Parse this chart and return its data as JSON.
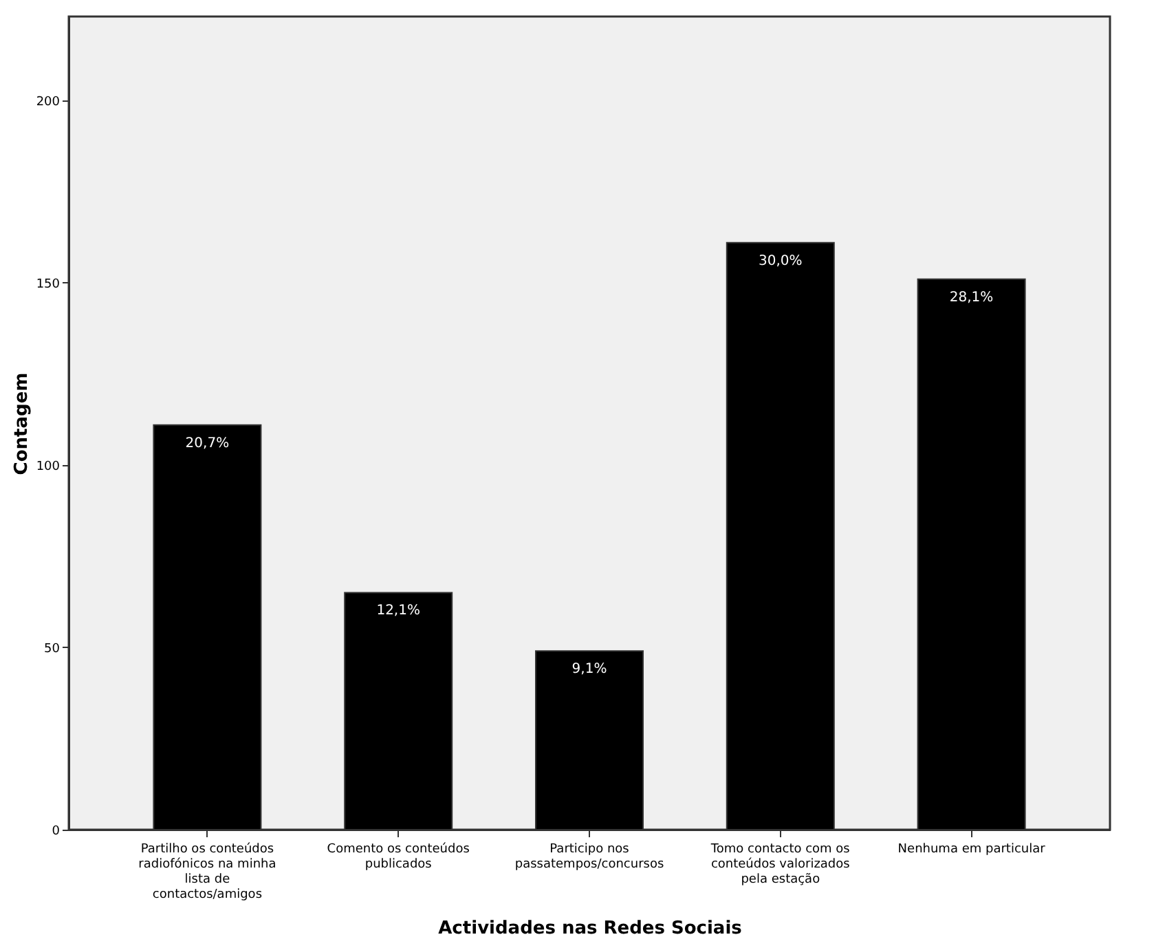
{
  "chart_data": {
    "type": "bar",
    "categories": [
      "Partilho os conteúdos radiofónicos na minha lista de contactos/amigos",
      "Comento os conteúdos publicados",
      "Participo nos passatempos/concursos",
      "Tomo contacto com os conteúdos valorizados pela estação",
      "Nenhuma em particular"
    ],
    "values": [
      111,
      65,
      49,
      161,
      151
    ],
    "annotations": [
      {
        "text": "20,7%",
        "x": "Partilho os conteúdos radiofónicos na minha lista de contactos/amigos",
        "y": 111
      },
      {
        "text": "12,1%",
        "x": "Comento os conteúdos publicados",
        "y": 65
      },
      {
        "text": "9,1%",
        "x": "Participo nos passatempos/concursos",
        "y": 49
      },
      {
        "text": "30,0%",
        "x": "Tomo contacto com os conteúdos valorizados pela estação",
        "y": 161
      },
      {
        "text": "28,1%",
        "x": "Nenhuma em particular",
        "y": 151
      }
    ],
    "color": "#000000",
    "xlabel": "Actividades nas Redes Sociais",
    "ylabel": "Contagem",
    "ylim": [
      0,
      223
    ],
    "yticks": [
      0,
      50,
      100,
      150,
      200
    ],
    "grid": false
  }
}
